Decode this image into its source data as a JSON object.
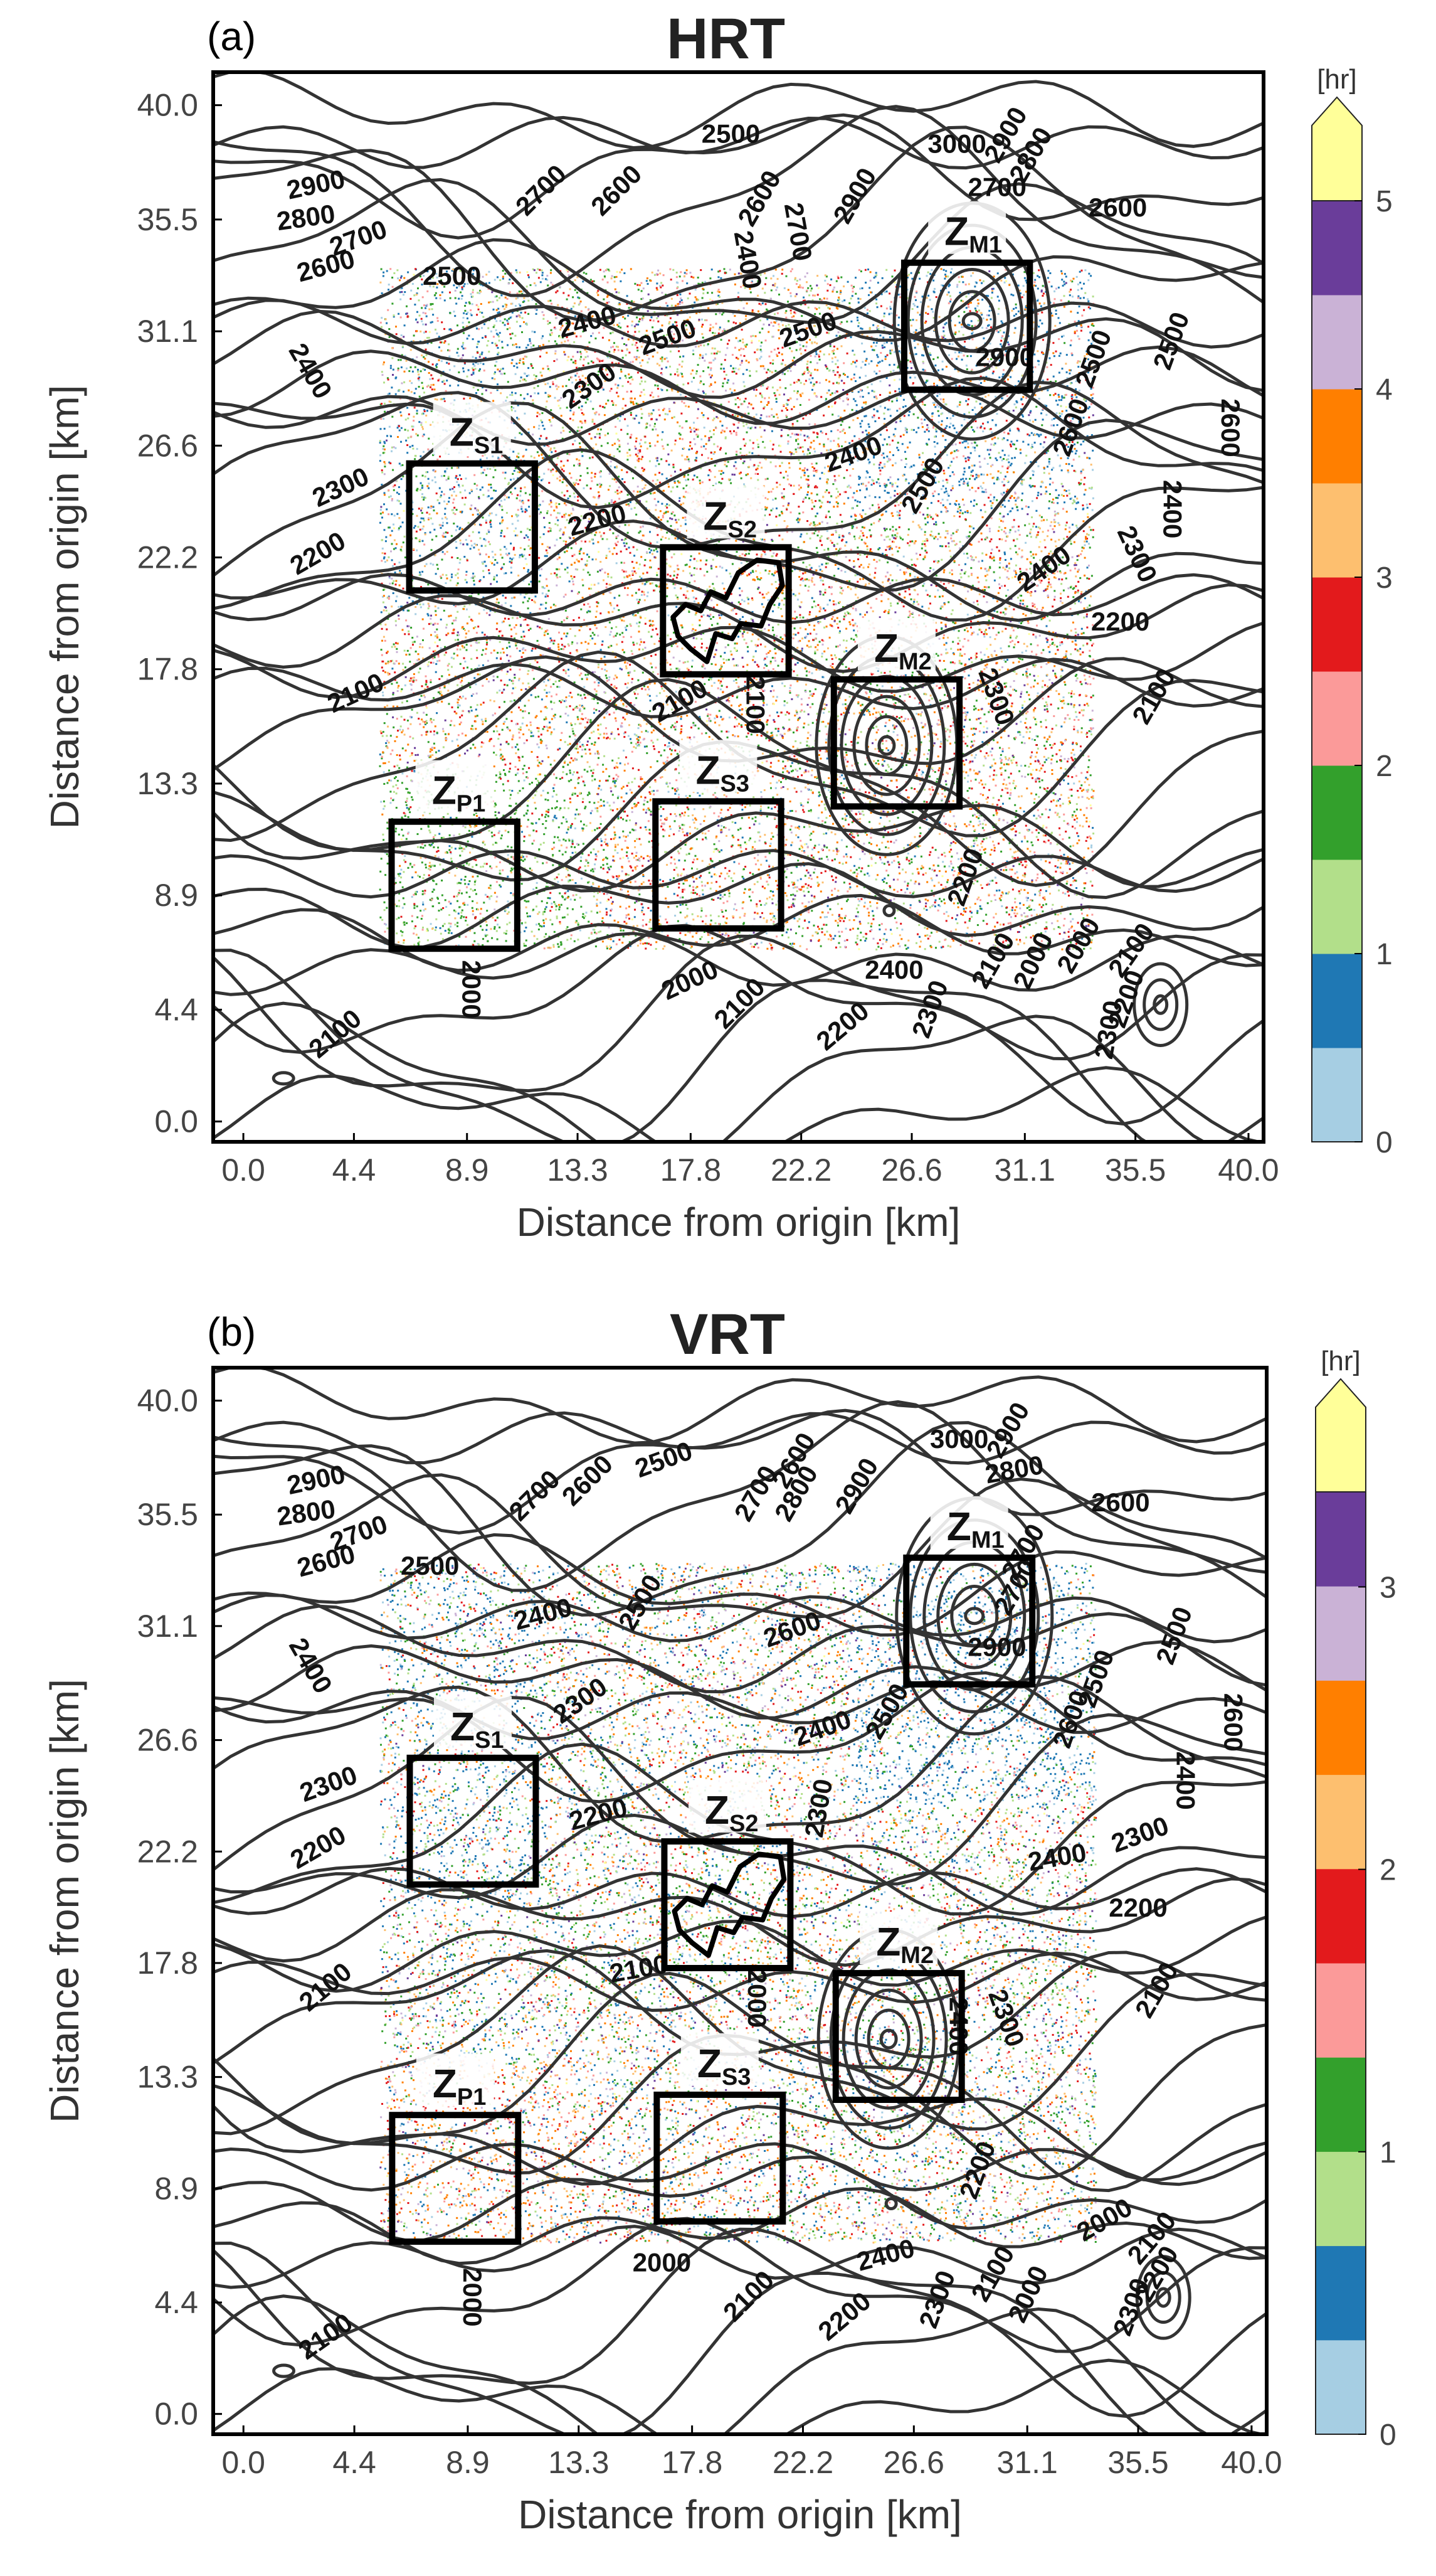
{
  "chart_data": [
    {
      "type": "heatmap",
      "panel": "(a)",
      "title": "HRT",
      "xlabel": "Distance from origin [km]",
      "ylabel": "Distance from origin [km]",
      "x_ticks": [
        "0.0",
        "4.4",
        "8.9",
        "13.3",
        "17.8",
        "22.2",
        "26.6",
        "31.1",
        "35.5",
        "40.0"
      ],
      "y_ticks": [
        "0.0",
        "4.4",
        "8.9",
        "13.3",
        "17.8",
        "22.2",
        "26.6",
        "31.1",
        "35.5",
        "40.0"
      ],
      "xlim": [
        -1.2,
        40.6
      ],
      "ylim": [
        -0.8,
        41.3
      ],
      "colorbar": {
        "unit": "[hr]",
        "ticks": [
          "0",
          "1",
          "2",
          "3",
          "4",
          "5"
        ],
        "range": [
          0,
          5.5
        ],
        "bins": 11,
        "extend": "max",
        "colors": [
          "#a6cee3",
          "#1f78b4",
          "#b2df8a",
          "#33a02c",
          "#fb9a99",
          "#e31a1c",
          "#fdbf6f",
          "#ff7f00",
          "#cab2d6",
          "#6a3d9a",
          "#ffff99"
        ]
      },
      "scatter_region": {
        "x": [
          5.4,
          33.8
        ],
        "y": [
          6.8,
          33.6
        ]
      },
      "zones": [
        {
          "name": "Z",
          "sub": "S1",
          "x0": 6.6,
          "x1": 11.6,
          "y0": 20.9,
          "y1": 25.9
        },
        {
          "name": "Z",
          "sub": "S2",
          "x0": 16.7,
          "x1": 21.7,
          "y0": 17.6,
          "y1": 22.6
        },
        {
          "name": "Z",
          "sub": "S3",
          "x0": 16.4,
          "x1": 21.4,
          "y0": 7.6,
          "y1": 12.6
        },
        {
          "name": "Z",
          "sub": "P1",
          "x0": 5.9,
          "x1": 10.9,
          "y0": 6.8,
          "y1": 11.8
        },
        {
          "name": "Z",
          "sub": "M1",
          "x0": 26.3,
          "x1": 31.3,
          "y0": 28.8,
          "y1": 33.8
        },
        {
          "name": "Z",
          "sub": "M2",
          "x0": 23.5,
          "x1": 28.5,
          "y0": 12.4,
          "y1": 17.4
        }
      ],
      "contour_labels": [
        {
          "text": "2900",
          "x": 2.9,
          "y": 36.8,
          "angle": -12
        },
        {
          "text": "2800",
          "x": 2.5,
          "y": 35.5,
          "angle": -8
        },
        {
          "text": "2700",
          "x": 4.6,
          "y": 34.7,
          "angle": -20
        },
        {
          "text": "2600",
          "x": 3.3,
          "y": 33.6,
          "angle": -15
        },
        {
          "text": "2500",
          "x": 8.3,
          "y": 33.2,
          "angle": 0
        },
        {
          "text": "2700",
          "x": 11.9,
          "y": 36.6,
          "angle": -45
        },
        {
          "text": "2600",
          "x": 14.9,
          "y": 36.6,
          "angle": -45
        },
        {
          "text": "2500",
          "x": 19.4,
          "y": 38.8,
          "angle": 0
        },
        {
          "text": "2600",
          "x": 20.6,
          "y": 36.3,
          "angle": -60
        },
        {
          "text": "2700",
          "x": 22.0,
          "y": 35.0,
          "angle": 80
        },
        {
          "text": "2900",
          "x": 24.4,
          "y": 36.4,
          "angle": -60
        },
        {
          "text": "3000",
          "x": 28.4,
          "y": 38.4,
          "angle": 0
        },
        {
          "text": "2900",
          "x": 30.4,
          "y": 38.8,
          "angle": -60
        },
        {
          "text": "2800",
          "x": 31.4,
          "y": 38.0,
          "angle": -60
        },
        {
          "text": "2700",
          "x": 30.0,
          "y": 36.7,
          "angle": 0
        },
        {
          "text": "2600",
          "x": 34.8,
          "y": 35.9,
          "angle": 0
        },
        {
          "text": "2400",
          "x": 13.7,
          "y": 31.4,
          "angle": -15
        },
        {
          "text": "2500",
          "x": 16.9,
          "y": 30.8,
          "angle": -20
        },
        {
          "text": "2500",
          "x": 22.5,
          "y": 31.1,
          "angle": -20
        },
        {
          "text": "2400",
          "x": 20.0,
          "y": 33.9,
          "angle": 80
        },
        {
          "text": "2300",
          "x": 13.8,
          "y": 28.9,
          "angle": -35
        },
        {
          "text": "2400",
          "x": 2.6,
          "y": 29.5,
          "angle": 60
        },
        {
          "text": "2300",
          "x": 3.9,
          "y": 24.9,
          "angle": -25
        },
        {
          "text": "2200",
          "x": 14.1,
          "y": 23.6,
          "angle": -15
        },
        {
          "text": "2200",
          "x": 3.0,
          "y": 22.3,
          "angle": -30
        },
        {
          "text": "2100",
          "x": 4.5,
          "y": 16.8,
          "angle": -25
        },
        {
          "text": "2100",
          "x": 17.4,
          "y": 16.5,
          "angle": -30
        },
        {
          "text": "2100",
          "x": 20.3,
          "y": 16.4,
          "angle": 90
        },
        {
          "text": "2400",
          "x": 24.3,
          "y": 26.2,
          "angle": -20
        },
        {
          "text": "2500",
          "x": 27.1,
          "y": 25.0,
          "angle": -60
        },
        {
          "text": "2900",
          "x": 30.3,
          "y": 30.0,
          "angle": 0
        },
        {
          "text": "2500",
          "x": 33.9,
          "y": 30.0,
          "angle": -70
        },
        {
          "text": "2600",
          "x": 33.0,
          "y": 27.3,
          "angle": -70
        },
        {
          "text": "2500",
          "x": 37.0,
          "y": 30.7,
          "angle": -70
        },
        {
          "text": "2600",
          "x": 39.2,
          "y": 27.3,
          "angle": 90
        },
        {
          "text": "2400",
          "x": 36.9,
          "y": 24.1,
          "angle": 90
        },
        {
          "text": "2300",
          "x": 35.5,
          "y": 22.3,
          "angle": 65
        },
        {
          "text": "2400",
          "x": 31.9,
          "y": 21.7,
          "angle": -35
        },
        {
          "text": "2200",
          "x": 34.9,
          "y": 19.6,
          "angle": 0
        },
        {
          "text": "2100",
          "x": 36.3,
          "y": 16.7,
          "angle": -60
        },
        {
          "text": "2300",
          "x": 29.9,
          "y": 16.7,
          "angle": 70
        },
        {
          "text": "2200",
          "x": 28.8,
          "y": 9.6,
          "angle": -70
        },
        {
          "text": "2100",
          "x": 29.9,
          "y": 6.3,
          "angle": -60
        },
        {
          "text": "2000",
          "x": 31.5,
          "y": 6.3,
          "angle": -65
        },
        {
          "text": "2000",
          "x": 33.3,
          "y": 6.9,
          "angle": -60
        },
        {
          "text": "2100",
          "x": 35.4,
          "y": 6.7,
          "angle": -55
        },
        {
          "text": "2200",
          "x": 35.2,
          "y": 4.8,
          "angle": -70
        },
        {
          "text": "2300",
          "x": 34.5,
          "y": 3.6,
          "angle": -80
        },
        {
          "text": "2400",
          "x": 25.9,
          "y": 5.9,
          "angle": 0
        },
        {
          "text": "2300",
          "x": 27.4,
          "y": 4.4,
          "angle": -70
        },
        {
          "text": "2200",
          "x": 23.9,
          "y": 3.7,
          "angle": -40
        },
        {
          "text": "2100",
          "x": 19.8,
          "y": 4.6,
          "angle": -45
        },
        {
          "text": "2000",
          "x": 17.8,
          "y": 5.5,
          "angle": -25
        },
        {
          "text": "2000",
          "x": 9.0,
          "y": 5.2,
          "angle": 90
        },
        {
          "text": "2100",
          "x": 3.7,
          "y": 3.4,
          "angle": -40
        }
      ]
    },
    {
      "type": "heatmap",
      "panel": "(b)",
      "title": "VRT",
      "xlabel": "Distance from origin [km]",
      "ylabel": "Distance from origin [km]",
      "x_ticks": [
        "0.0",
        "4.4",
        "8.9",
        "13.3",
        "17.8",
        "22.2",
        "26.6",
        "31.1",
        "35.5",
        "40.0"
      ],
      "y_ticks": [
        "0.0",
        "4.4",
        "8.9",
        "13.3",
        "17.8",
        "22.2",
        "26.6",
        "31.1",
        "35.5",
        "40.0"
      ],
      "xlim": [
        -1.2,
        40.6
      ],
      "ylim": [
        -0.8,
        41.3
      ],
      "colorbar": {
        "unit": "[hr]",
        "ticks": [
          "0",
          "1",
          "2",
          "3"
        ],
        "range": [
          0,
          3.67
        ],
        "bins": 11,
        "extend": "max",
        "colors": [
          "#a6cee3",
          "#1f78b4",
          "#b2df8a",
          "#33a02c",
          "#fb9a99",
          "#e31a1c",
          "#fdbf6f",
          "#ff7f00",
          "#cab2d6",
          "#6a3d9a",
          "#ffff99"
        ]
      },
      "scatter_region": {
        "x": [
          5.4,
          33.8
        ],
        "y": [
          6.8,
          33.6
        ]
      },
      "zones": [
        {
          "name": "Z",
          "sub": "S1",
          "x0": 6.6,
          "x1": 11.6,
          "y0": 20.9,
          "y1": 25.9
        },
        {
          "name": "Z",
          "sub": "S2",
          "x0": 16.7,
          "x1": 21.7,
          "y0": 17.6,
          "y1": 22.6
        },
        {
          "name": "Z",
          "sub": "S3",
          "x0": 16.4,
          "x1": 21.4,
          "y0": 7.6,
          "y1": 12.6
        },
        {
          "name": "Z",
          "sub": "P1",
          "x0": 5.9,
          "x1": 10.9,
          "y0": 6.8,
          "y1": 11.8
        },
        {
          "name": "Z",
          "sub": "M1",
          "x0": 26.3,
          "x1": 31.3,
          "y0": 28.8,
          "y1": 33.8
        },
        {
          "name": "Z",
          "sub": "M2",
          "x0": 23.5,
          "x1": 28.5,
          "y0": 12.4,
          "y1": 17.4
        }
      ],
      "contour_labels": [
        {
          "text": "2900",
          "x": 2.9,
          "y": 36.8,
          "angle": -12
        },
        {
          "text": "2800",
          "x": 2.5,
          "y": 35.5,
          "angle": -8
        },
        {
          "text": "2700",
          "x": 4.6,
          "y": 34.7,
          "angle": -20
        },
        {
          "text": "2600",
          "x": 3.3,
          "y": 33.6,
          "angle": -15
        },
        {
          "text": "2500",
          "x": 7.4,
          "y": 33.4,
          "angle": 0
        },
        {
          "text": "2700",
          "x": 11.6,
          "y": 36.2,
          "angle": -45
        },
        {
          "text": "2600",
          "x": 13.7,
          "y": 36.8,
          "angle": -45
        },
        {
          "text": "2500",
          "x": 16.7,
          "y": 37.6,
          "angle": -20
        },
        {
          "text": "2700",
          "x": 20.4,
          "y": 36.3,
          "angle": -60
        },
        {
          "text": "2600",
          "x": 21.9,
          "y": 37.6,
          "angle": -60
        },
        {
          "text": "2800",
          "x": 22.0,
          "y": 36.3,
          "angle": -60
        },
        {
          "text": "2900",
          "x": 24.4,
          "y": 36.6,
          "angle": -60
        },
        {
          "text": "3000",
          "x": 28.4,
          "y": 38.4,
          "angle": 0
        },
        {
          "text": "2900",
          "x": 30.4,
          "y": 38.8,
          "angle": -60
        },
        {
          "text": "2800",
          "x": 30.6,
          "y": 37.2,
          "angle": -10
        },
        {
          "text": "2700",
          "x": 31.0,
          "y": 34.0,
          "angle": -60
        },
        {
          "text": "2600",
          "x": 34.8,
          "y": 35.9,
          "angle": 0
        },
        {
          "text": "2400",
          "x": 11.9,
          "y": 31.5,
          "angle": -15
        },
        {
          "text": "2500",
          "x": 15.8,
          "y": 32.0,
          "angle": -60
        },
        {
          "text": "2600",
          "x": 21.8,
          "y": 30.9,
          "angle": -20
        },
        {
          "text": "2300",
          "x": 13.4,
          "y": 28.1,
          "angle": -35
        },
        {
          "text": "2400",
          "x": 2.6,
          "y": 29.5,
          "angle": 60
        },
        {
          "text": "2300",
          "x": 3.4,
          "y": 24.8,
          "angle": -20
        },
        {
          "text": "2200",
          "x": 14.1,
          "y": 23.6,
          "angle": -15
        },
        {
          "text": "2200",
          "x": 3.0,
          "y": 22.3,
          "angle": -30
        },
        {
          "text": "2100",
          "x": 3.3,
          "y": 16.8,
          "angle": -40
        },
        {
          "text": "2100",
          "x": 15.7,
          "y": 17.5,
          "angle": -10
        },
        {
          "text": "2000",
          "x": 20.3,
          "y": 16.4,
          "angle": 90
        },
        {
          "text": "2300",
          "x": 22.9,
          "y": 23.9,
          "angle": -80
        },
        {
          "text": "2400",
          "x": 23.0,
          "y": 27.0,
          "angle": -20
        },
        {
          "text": "2500",
          "x": 25.6,
          "y": 27.7,
          "angle": -60
        },
        {
          "text": "2900",
          "x": 29.9,
          "y": 30.2,
          "angle": 0
        },
        {
          "text": "2700",
          "x": 30.7,
          "y": 32.6,
          "angle": -60
        },
        {
          "text": "2500",
          "x": 33.9,
          "y": 29.0,
          "angle": -70
        },
        {
          "text": "2600",
          "x": 32.9,
          "y": 27.4,
          "angle": -70
        },
        {
          "text": "2500",
          "x": 37.0,
          "y": 30.7,
          "angle": -70
        },
        {
          "text": "2600",
          "x": 39.2,
          "y": 27.3,
          "angle": 90
        },
        {
          "text": "2400",
          "x": 37.3,
          "y": 25.0,
          "angle": 90
        },
        {
          "text": "2300",
          "x": 35.6,
          "y": 22.8,
          "angle": -20
        },
        {
          "text": "2400",
          "x": 32.3,
          "y": 21.9,
          "angle": -10
        },
        {
          "text": "2200",
          "x": 35.5,
          "y": 19.9,
          "angle": 0
        },
        {
          "text": "2100",
          "x": 36.3,
          "y": 16.7,
          "angle": -60
        },
        {
          "text": "2300",
          "x": 30.2,
          "y": 15.6,
          "angle": 70
        },
        {
          "text": "2400",
          "x": 28.3,
          "y": 15.3,
          "angle": 90
        },
        {
          "text": "2200",
          "x": 29.2,
          "y": 9.6,
          "angle": -70
        },
        {
          "text": "2000",
          "x": 34.2,
          "y": 7.6,
          "angle": -30
        },
        {
          "text": "2100",
          "x": 36.1,
          "y": 6.9,
          "angle": -50
        },
        {
          "text": "2200",
          "x": 36.3,
          "y": 5.5,
          "angle": -60
        },
        {
          "text": "2300",
          "x": 35.3,
          "y": 4.2,
          "angle": -70
        },
        {
          "text": "2100",
          "x": 29.8,
          "y": 5.5,
          "angle": -60
        },
        {
          "text": "2000",
          "x": 31.2,
          "y": 4.7,
          "angle": -65
        },
        {
          "text": "2400",
          "x": 25.5,
          "y": 6.2,
          "angle": -15
        },
        {
          "text": "2300",
          "x": 27.6,
          "y": 4.5,
          "angle": -70
        },
        {
          "text": "2200",
          "x": 23.9,
          "y": 3.8,
          "angle": -40
        },
        {
          "text": "2100",
          "x": 20.1,
          "y": 4.6,
          "angle": -45
        },
        {
          "text": "2000",
          "x": 16.6,
          "y": 5.9,
          "angle": 0
        },
        {
          "text": "2000",
          "x": 9.0,
          "y": 4.6,
          "angle": 90
        },
        {
          "text": "2100",
          "x": 3.3,
          "y": 3.0,
          "angle": -35
        }
      ]
    }
  ]
}
